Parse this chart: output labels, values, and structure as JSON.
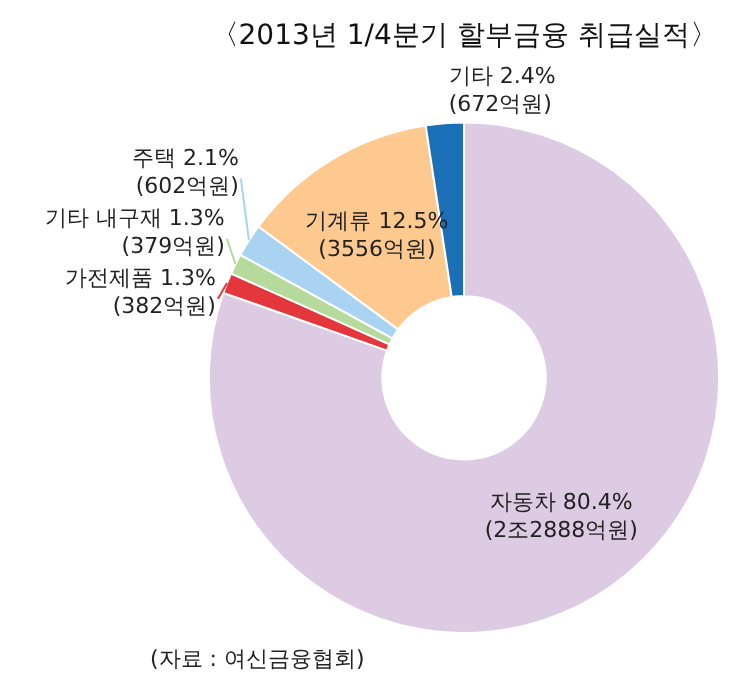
{
  "chart_data": {
    "type": "donut",
    "title": "〈2013년 1/4분기 할부금융 취급실적〉",
    "categories": [
      "자동차",
      "가전제품",
      "기타 내구재",
      "주택",
      "기계류",
      "기타"
    ],
    "values": [
      80.4,
      1.3,
      1.3,
      2.1,
      12.5,
      2.4
    ],
    "colors": [
      "#dccbe3",
      "#e3373d",
      "#b6d99c",
      "#a9d3f0",
      "#fdc98e",
      "#1b6fb6"
    ],
    "value_labels": [
      "80.4%\n(2조2888억원)",
      "1.3%\n(382억원)",
      "1.3%\n(379억원)",
      "2.1%\n(602억원)",
      "12.5%\n(3556억원)",
      "2.4%\n(672억원)"
    ],
    "annotations": [
      "(자료 : 여신금융협회)"
    ],
    "legend": false
  }
}
